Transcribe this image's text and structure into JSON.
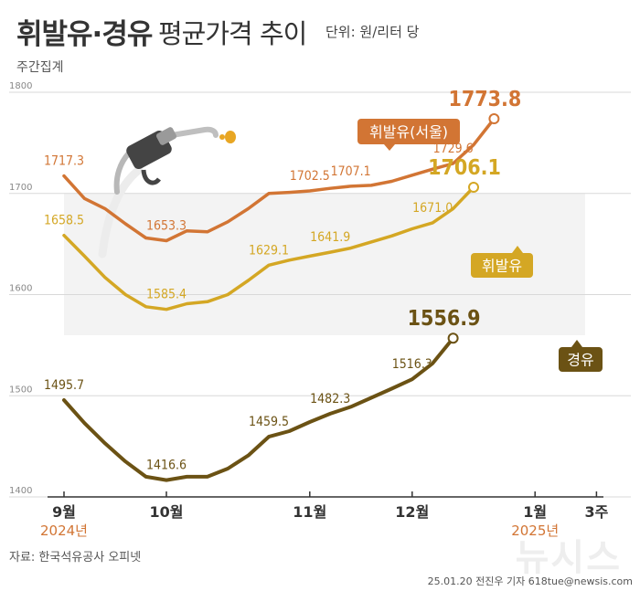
{
  "header": {
    "title_main": "휘발유·경유",
    "title_sub": "평균가격 추이",
    "unit": "단위: 원/리터 당",
    "note": "주간집계"
  },
  "footer": {
    "source": "자료: 한국석유공사 오피넷",
    "credit": "25.01.20 전진우 기자 618tue@newsis.com",
    "watermark": "뉴시스"
  },
  "colors": {
    "seoul": "#d27534",
    "gasoline": "#d4a724",
    "diesel": "#6b5214",
    "grid": "#d8d8d8",
    "band": "#f3f3f3"
  },
  "chart_data": {
    "type": "line",
    "title": "휘발유·경유 평균가격 추이",
    "ylabel": "원/리터 당",
    "ylim": [
      1400,
      1800
    ],
    "yticks": [
      1400,
      1500,
      1600,
      1700,
      1800
    ],
    "x_ticks": [
      "9월",
      "10월",
      "11월",
      "12월",
      "1월",
      "3주"
    ],
    "x_tick_index": [
      0,
      5,
      12,
      17,
      23,
      26
    ],
    "year_labels": [
      "2024년",
      "2025년"
    ],
    "year_label_index": [
      0,
      23
    ],
    "series": [
      {
        "name": "휘발유(서울)",
        "color_key": "seoul",
        "values": [
          1717.3,
          1695,
          1685,
          1670,
          1656,
          1653.3,
          1663,
          1662,
          1672,
          1685,
          1700,
          1701,
          1702.5,
          1705,
          1707.1,
          1708,
          1712,
          1718,
          1724,
          1729.6,
          1748,
          1773.8
        ],
        "labels": [
          {
            "i": 0,
            "text": "1717.3"
          },
          {
            "i": 5,
            "text": "1653.3"
          },
          {
            "i": 12,
            "text": "1702.5"
          },
          {
            "i": 14,
            "text": "1707.1"
          },
          {
            "i": 19,
            "text": "1729.6"
          },
          {
            "i": 21,
            "text": "1773.8"
          }
        ]
      },
      {
        "name": "휘발유",
        "color_key": "gasoline",
        "values": [
          1658.5,
          1638,
          1617,
          1600,
          1588,
          1585.4,
          1591,
          1593,
          1600,
          1614,
          1629.1,
          1634,
          1638,
          1641.9,
          1646,
          1652,
          1658,
          1665,
          1671.0,
          1685,
          1706.1
        ],
        "labels": [
          {
            "i": 0,
            "text": "1658.5"
          },
          {
            "i": 5,
            "text": "1585.4"
          },
          {
            "i": 10,
            "text": "1629.1"
          },
          {
            "i": 13,
            "text": "1641.9"
          },
          {
            "i": 18,
            "text": "1671.0"
          },
          {
            "i": 20,
            "text": "1706.1"
          }
        ]
      },
      {
        "name": "경유",
        "color_key": "diesel",
        "values": [
          1495.7,
          1473,
          1453,
          1435,
          1420,
          1416.6,
          1420,
          1420,
          1428,
          1441,
          1459.5,
          1465,
          1474,
          1482.3,
          1489,
          1498,
          1507,
          1516.3,
          1532,
          1556.9
        ],
        "labels": [
          {
            "i": 0,
            "text": "1495.7"
          },
          {
            "i": 5,
            "text": "1416.6"
          },
          {
            "i": 10,
            "text": "1459.5"
          },
          {
            "i": 13,
            "text": "1482.3"
          },
          {
            "i": 17,
            "text": "1516.3"
          },
          {
            "i": 19,
            "text": "1556.9"
          }
        ]
      }
    ],
    "legend_tags": [
      {
        "text": "휘발유(서울)",
        "color_key": "seoul"
      },
      {
        "text": "휘발유",
        "color_key": "gasoline"
      },
      {
        "text": "경유",
        "color_key": "diesel"
      }
    ]
  }
}
